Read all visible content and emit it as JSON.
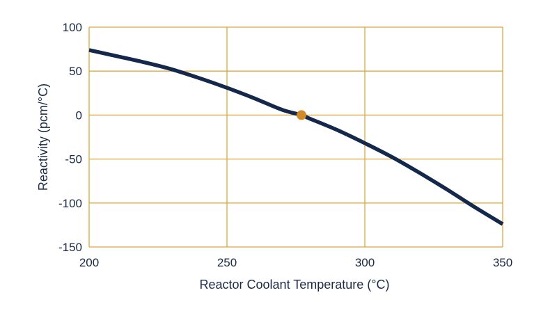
{
  "chart_data": {
    "type": "line",
    "title": "",
    "xlabel": "Reactor Coolant Temperature (°C)",
    "ylabel": "Reactivity (pcm/°C)",
    "xlim": [
      200,
      350
    ],
    "ylim": [
      -150,
      100
    ],
    "xticks": [
      200,
      250,
      300,
      350
    ],
    "yticks": [
      100,
      50,
      0,
      -50,
      -100,
      -150
    ],
    "grid": true,
    "colors": {
      "line": "#14284b",
      "grid": "#d8a940",
      "marker": "#d08a2a",
      "text": "#1b2a47"
    },
    "series": [
      {
        "x": [
          200,
          210,
          220,
          230,
          240,
          250,
          260,
          270,
          277,
          280,
          290,
          300,
          310,
          320,
          330,
          340,
          350
        ],
        "y": [
          74,
          67,
          60,
          52,
          42,
          31,
          19,
          6,
          0,
          -4,
          -17,
          -32,
          -48,
          -66,
          -85,
          -105,
          -124
        ]
      }
    ],
    "annotations": [
      {
        "type": "point",
        "x": 277,
        "y": 0
      }
    ]
  }
}
